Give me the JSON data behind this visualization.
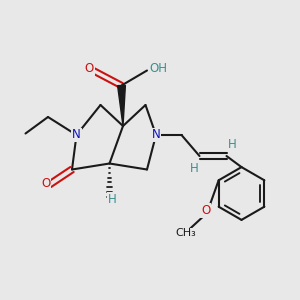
{
  "bg": "#e8e8e8",
  "bond_color": "#1a1a1a",
  "N_color": "#1111bb",
  "O_color": "#cc1111",
  "H_color": "#3a9090",
  "C_color": "#1a1a1a",
  "bond_lw": 1.5,
  "figsize": [
    3.0,
    3.0
  ],
  "dpi": 100,
  "xlim": [
    0,
    10
  ],
  "ylim": [
    0,
    10
  ]
}
